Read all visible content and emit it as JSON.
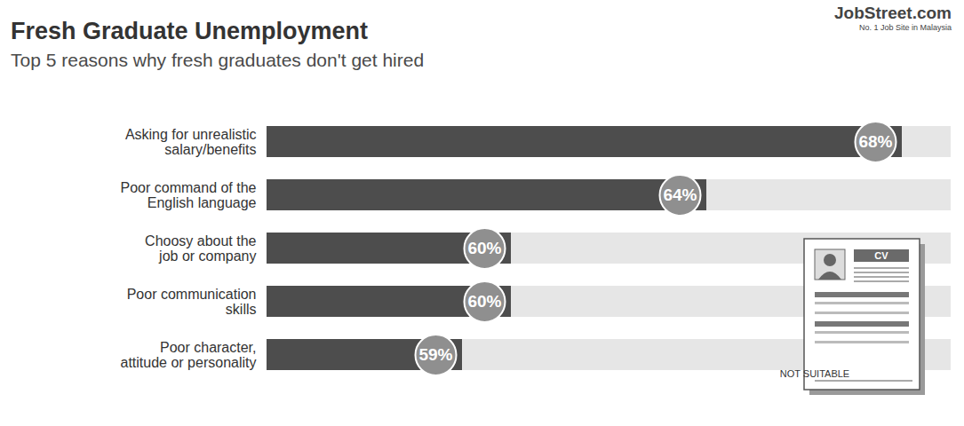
{
  "chart_data": {
    "type": "bar",
    "orientation": "horizontal",
    "title": "Fresh Graduate Unemployment",
    "subtitle": "Top 5 reasons why fresh graduates don't get hired",
    "annotations": [
      "JobStreet.com",
      "No. 1 Job Site in Malaysia",
      "CV",
      "NOT SUITABLE"
    ],
    "categories": [
      "Asking for unrealistic salary/benefits",
      "Poor command of the English language",
      "Choosy about the job or company",
      "Poor communication skills",
      "Poor character, attitude or personality"
    ],
    "values": [
      68,
      64,
      60,
      60,
      59
    ],
    "value_labels": [
      "68%",
      "64%",
      "60%",
      "60%",
      "59%"
    ],
    "color": "#4d4d4d",
    "xlim": [
      55,
      69
    ],
    "data_labels": true,
    "tick_labels": "y",
    "grid": false
  }
}
